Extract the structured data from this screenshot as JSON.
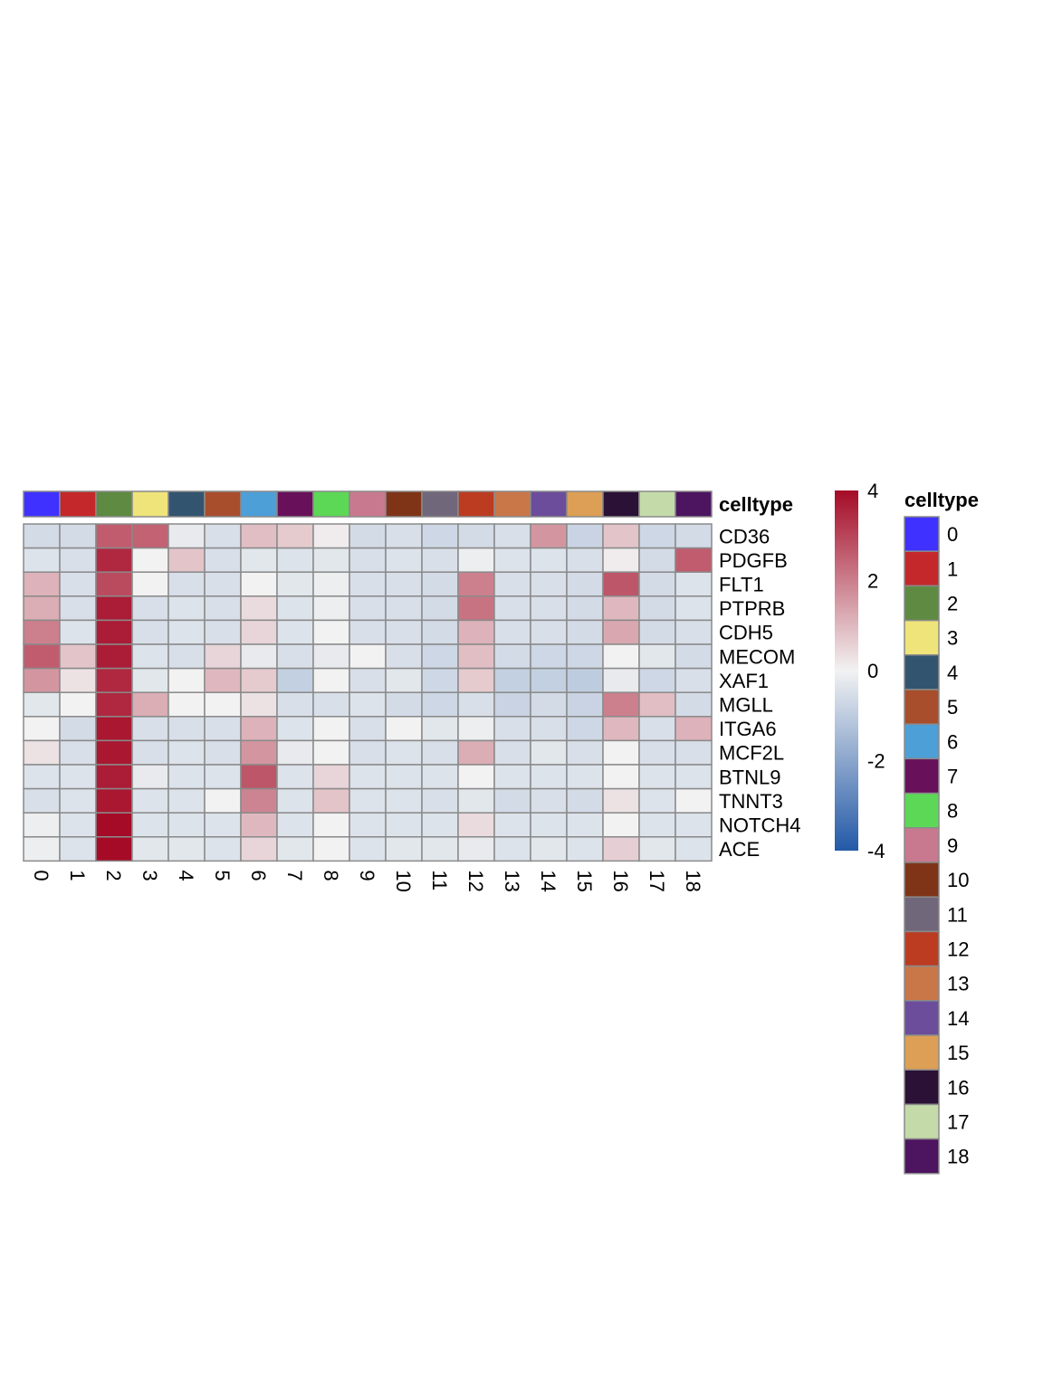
{
  "chart_data": {
    "type": "heatmap",
    "annotation_title": "celltype",
    "columns": [
      "0",
      "1",
      "2",
      "3",
      "4",
      "5",
      "6",
      "7",
      "8",
      "9",
      "10",
      "11",
      "12",
      "13",
      "14",
      "15",
      "16",
      "17",
      "18"
    ],
    "rows": [
      "CD36",
      "PDGFB",
      "FLT1",
      "PTPRB",
      "CDH5",
      "MECOM",
      "XAF1",
      "MGLL",
      "ITGA6",
      "MCF2L",
      "BTNL9",
      "TNNT3",
      "NOTCH4",
      "ACE"
    ],
    "values": [
      [
        -0.6,
        -0.6,
        2.6,
        2.5,
        -0.2,
        -0.5,
        0.9,
        0.7,
        0.1,
        -0.6,
        -0.5,
        -0.7,
        -0.6,
        -0.5,
        1.6,
        -0.8,
        0.8,
        -0.7,
        -0.6
      ],
      [
        -0.4,
        -0.5,
        3.5,
        0.0,
        0.8,
        -0.5,
        -0.3,
        -0.4,
        -0.3,
        -0.5,
        -0.4,
        -0.5,
        -0.1,
        -0.4,
        -0.4,
        -0.5,
        0.1,
        -0.6,
        2.6
      ],
      [
        1.1,
        -0.5,
        2.9,
        0.0,
        -0.5,
        -0.5,
        0.0,
        -0.3,
        -0.1,
        -0.5,
        -0.5,
        -0.6,
        2.0,
        -0.5,
        -0.5,
        -0.6,
        2.7,
        -0.6,
        -0.4
      ],
      [
        1.2,
        -0.5,
        3.7,
        -0.5,
        -0.4,
        -0.5,
        0.4,
        -0.4,
        -0.1,
        -0.5,
        -0.5,
        -0.6,
        2.2,
        -0.5,
        -0.5,
        -0.6,
        1.0,
        -0.6,
        -0.4
      ],
      [
        2.0,
        -0.4,
        3.7,
        -0.5,
        -0.4,
        -0.5,
        0.5,
        -0.4,
        0.0,
        -0.5,
        -0.5,
        -0.6,
        1.1,
        -0.5,
        -0.5,
        -0.6,
        1.3,
        -0.6,
        -0.5
      ],
      [
        2.6,
        0.8,
        3.7,
        -0.4,
        -0.5,
        0.5,
        -0.2,
        -0.5,
        -0.2,
        0.0,
        -0.5,
        -0.7,
        0.9,
        -0.6,
        -0.7,
        -0.7,
        0.0,
        -0.3,
        -0.6
      ],
      [
        1.6,
        0.3,
        3.5,
        -0.3,
        0.0,
        1.0,
        0.7,
        -0.9,
        0.0,
        -0.5,
        -0.3,
        -0.7,
        0.7,
        -0.9,
        -0.9,
        -1.0,
        -0.2,
        -0.7,
        -0.5
      ],
      [
        -0.3,
        0.0,
        3.5,
        1.2,
        0.0,
        0.0,
        0.3,
        -0.5,
        -0.5,
        -0.4,
        -0.6,
        -0.7,
        -0.5,
        -0.8,
        -0.6,
        -0.8,
        2.0,
        0.9,
        -0.6
      ],
      [
        0.0,
        -0.6,
        3.8,
        -0.5,
        -0.5,
        -0.5,
        1.1,
        -0.4,
        0.0,
        -0.5,
        0.0,
        -0.3,
        -0.1,
        -0.5,
        -0.5,
        -0.7,
        1.0,
        -0.5,
        1.1
      ],
      [
        0.3,
        -0.5,
        3.8,
        -0.5,
        -0.4,
        -0.5,
        1.6,
        -0.2,
        0.0,
        -0.5,
        -0.4,
        -0.5,
        1.2,
        -0.5,
        -0.3,
        -0.5,
        0.0,
        -0.5,
        -0.5
      ],
      [
        -0.4,
        -0.4,
        3.7,
        -0.2,
        -0.4,
        -0.4,
        2.7,
        -0.4,
        0.5,
        -0.4,
        -0.4,
        -0.4,
        0.0,
        -0.4,
        -0.4,
        -0.4,
        0.0,
        -0.4,
        -0.4
      ],
      [
        -0.5,
        -0.4,
        3.8,
        -0.4,
        -0.4,
        0.0,
        1.9,
        -0.4,
        0.8,
        -0.4,
        -0.4,
        -0.5,
        -0.3,
        -0.6,
        -0.5,
        -0.6,
        0.3,
        -0.4,
        0.0
      ],
      [
        -0.1,
        -0.4,
        4.0,
        -0.4,
        -0.4,
        -0.4,
        1.0,
        -0.4,
        0.0,
        -0.4,
        -0.4,
        -0.4,
        0.4,
        -0.4,
        -0.4,
        -0.4,
        0.0,
        -0.4,
        -0.4
      ],
      [
        -0.1,
        -0.4,
        4.0,
        -0.3,
        -0.3,
        -0.4,
        0.5,
        -0.3,
        0.0,
        -0.4,
        -0.3,
        -0.3,
        -0.2,
        -0.4,
        -0.3,
        -0.4,
        0.6,
        -0.3,
        -0.4
      ]
    ],
    "annotation_colors": [
      "#3f31ff",
      "#c4282a",
      "#5e8a42",
      "#efe47a",
      "#33546f",
      "#a94e2d",
      "#4d9fd8",
      "#68105a",
      "#5cd856",
      "#c9798f",
      "#7f3418",
      "#71677a",
      "#bc3c22",
      "#c97749",
      "#6c4d9b",
      "#dd9f55",
      "#2a1135",
      "#c4dba9",
      "#4d1460"
    ],
    "colorbar": {
      "ticks": [
        "4",
        "2",
        "0",
        "-2",
        "-4"
      ],
      "range": [
        -4,
        4
      ],
      "low_color": "#2359a7",
      "mid_color": "#f2f2f2",
      "high_color": "#a50b27"
    },
    "legend_title": "celltype",
    "legend_position": "right",
    "grid": true
  }
}
